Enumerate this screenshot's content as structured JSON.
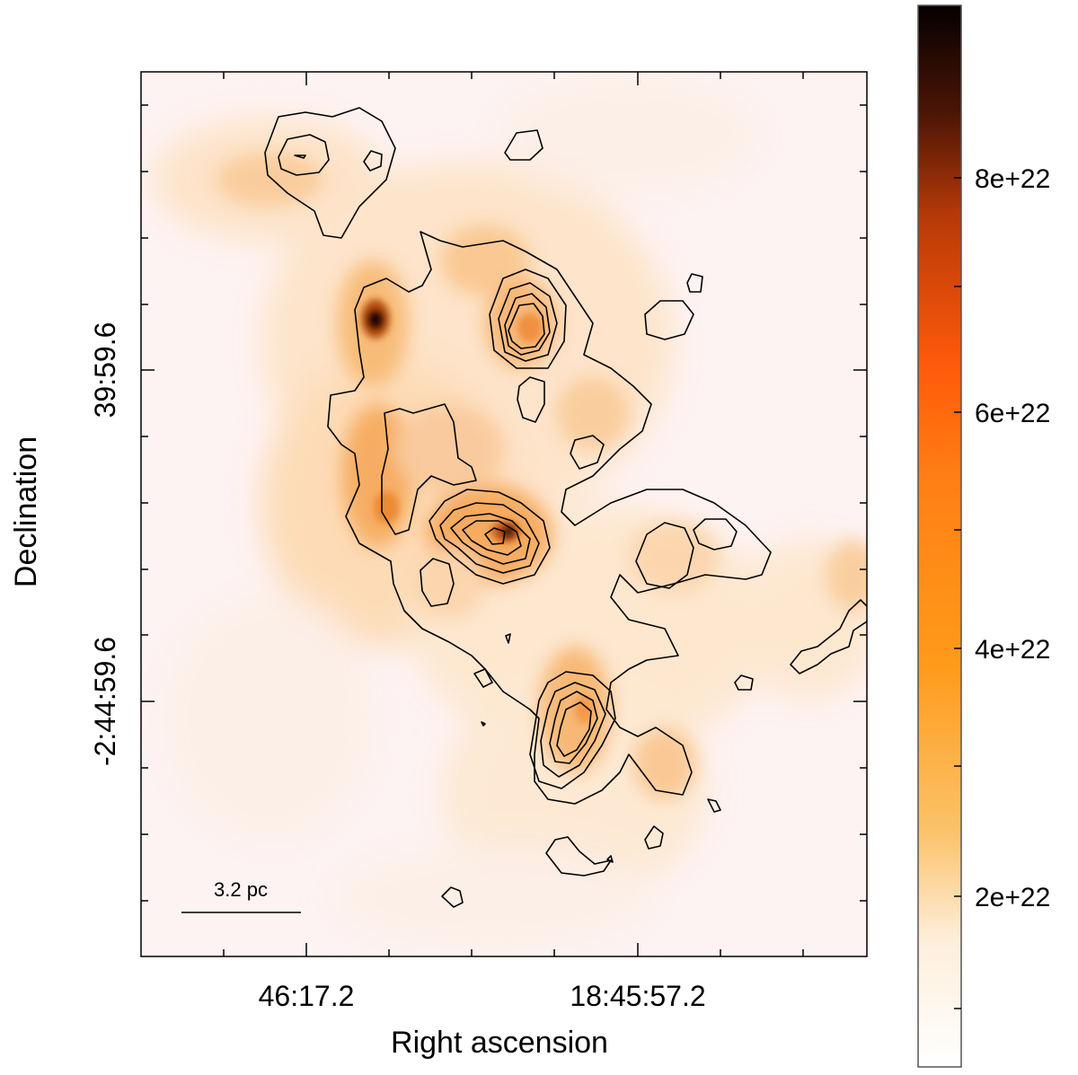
{
  "axes": {
    "xlabel": "Right ascension",
    "ylabel": "Declination",
    "x_ticks": [
      "46:17.2",
      "18:45:57.2"
    ],
    "y_ticks": [
      "39:59.6",
      "-2:44:59.6"
    ]
  },
  "scalebar": {
    "label": "3.2 pc"
  },
  "colorbar": {
    "ticks": [
      "8e+22",
      "6e+22",
      "4e+22",
      "2e+22"
    ],
    "colors": {
      "low": "#ffffff",
      "mid_low": "#fbc36b",
      "mid": "#ff9a1a",
      "mid_high": "#ff5a0a",
      "high_dark": "#4a1505",
      "top": "#050000"
    }
  },
  "map_colors": {
    "background": "#fdf3f3",
    "faint": "#fde2c4",
    "medium": "#f7a84a",
    "bright": "#ef7a1a",
    "peak": "#1a0500",
    "contour": "#000000"
  }
}
